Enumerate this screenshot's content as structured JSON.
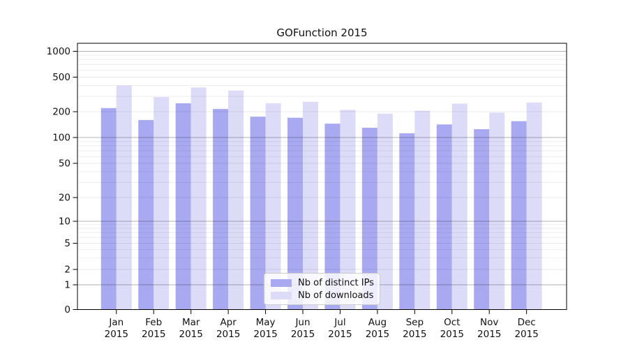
{
  "chart_data": {
    "type": "bar",
    "title": "GOFunction 2015",
    "categories": [
      "Jan",
      "Feb",
      "Mar",
      "Apr",
      "May",
      "Jun",
      "Jul",
      "Aug",
      "Sep",
      "Oct",
      "Nov",
      "Dec"
    ],
    "x_year": "2015",
    "series": [
      {
        "name": "Nb of distinct IPs",
        "color": "#a9a9f1",
        "values": [
          220,
          160,
          250,
          215,
          175,
          170,
          145,
          130,
          112,
          142,
          125,
          155
        ]
      },
      {
        "name": "Nb of downloads",
        "color": "#dcdcf8",
        "values": [
          400,
          295,
          380,
          350,
          250,
          260,
          210,
          190,
          205,
          248,
          195,
          255
        ]
      }
    ],
    "y_axis": {
      "scale": "symlog",
      "tick_values": [
        0,
        1,
        2,
        5,
        10,
        20,
        50,
        100,
        200,
        500,
        1000
      ],
      "tick_labels": [
        "0",
        "1",
        "2",
        "5",
        "10",
        "20",
        "50",
        "100",
        "200",
        "500",
        "1000"
      ]
    },
    "ylim": [
      0,
      1400
    ],
    "grid": true,
    "legend_position": "lower center"
  }
}
